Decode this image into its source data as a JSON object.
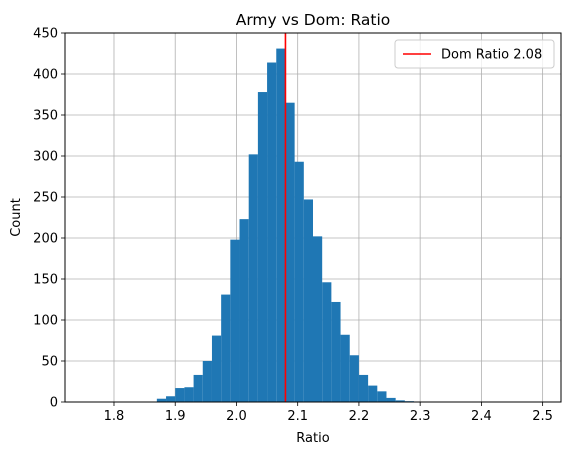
{
  "chart_data": {
    "type": "histogram",
    "title": "Army vs Dom: Ratio",
    "xlabel": "Ratio",
    "ylabel": "Count",
    "xlim": [
      1.72,
      2.53
    ],
    "ylim": [
      0,
      450
    ],
    "xticks": [
      1.8,
      1.9,
      2.0,
      2.1,
      2.2,
      2.3,
      2.4,
      2.5
    ],
    "yticks": [
      0,
      50,
      100,
      150,
      200,
      250,
      300,
      350,
      400,
      450
    ],
    "grid": true,
    "bar_color": "#1f77b4",
    "bins": [
      {
        "x0": 1.75,
        "x1": 1.765,
        "count": 0
      },
      {
        "x0": 1.765,
        "x1": 1.78,
        "count": 0
      },
      {
        "x0": 1.78,
        "x1": 1.795,
        "count": 0
      },
      {
        "x0": 1.795,
        "x1": 1.81,
        "count": 0
      },
      {
        "x0": 1.81,
        "x1": 1.825,
        "count": 0
      },
      {
        "x0": 1.825,
        "x1": 1.84,
        "count": 0
      },
      {
        "x0": 1.84,
        "x1": 1.855,
        "count": 0
      },
      {
        "x0": 1.855,
        "x1": 1.87,
        "count": 0
      },
      {
        "x0": 1.87,
        "x1": 1.885,
        "count": 4
      },
      {
        "x0": 1.885,
        "x1": 1.9,
        "count": 7
      },
      {
        "x0": 1.9,
        "x1": 1.915,
        "count": 17
      },
      {
        "x0": 1.915,
        "x1": 1.93,
        "count": 18
      },
      {
        "x0": 1.93,
        "x1": 1.945,
        "count": 33
      },
      {
        "x0": 1.945,
        "x1": 1.96,
        "count": 50
      },
      {
        "x0": 1.96,
        "x1": 1.975,
        "count": 81
      },
      {
        "x0": 1.975,
        "x1": 1.99,
        "count": 131
      },
      {
        "x0": 1.99,
        "x1": 2.005,
        "count": 198
      },
      {
        "x0": 2.005,
        "x1": 2.02,
        "count": 223
      },
      {
        "x0": 2.02,
        "x1": 2.035,
        "count": 302
      },
      {
        "x0": 2.035,
        "x1": 2.05,
        "count": 378
      },
      {
        "x0": 2.05,
        "x1": 2.065,
        "count": 414
      },
      {
        "x0": 2.065,
        "x1": 2.08,
        "count": 431
      },
      {
        "x0": 2.08,
        "x1": 2.095,
        "count": 365
      },
      {
        "x0": 2.095,
        "x1": 2.11,
        "count": 293
      },
      {
        "x0": 2.11,
        "x1": 2.125,
        "count": 247
      },
      {
        "x0": 2.125,
        "x1": 2.14,
        "count": 202
      },
      {
        "x0": 2.14,
        "x1": 2.155,
        "count": 146
      },
      {
        "x0": 2.155,
        "x1": 2.17,
        "count": 122
      },
      {
        "x0": 2.17,
        "x1": 2.185,
        "count": 82
      },
      {
        "x0": 2.185,
        "x1": 2.2,
        "count": 57
      },
      {
        "x0": 2.2,
        "x1": 2.215,
        "count": 33
      },
      {
        "x0": 2.215,
        "x1": 2.23,
        "count": 20
      },
      {
        "x0": 2.23,
        "x1": 2.245,
        "count": 13
      },
      {
        "x0": 2.245,
        "x1": 2.26,
        "count": 5
      },
      {
        "x0": 2.26,
        "x1": 2.275,
        "count": 2
      },
      {
        "x0": 2.275,
        "x1": 2.29,
        "count": 1
      }
    ],
    "reference_line": {
      "x": 2.08,
      "color": "#ff0000",
      "label": "Dom Ratio 2.08"
    },
    "legend": {
      "placement": "top-right",
      "entries": [
        "Dom Ratio 2.08"
      ]
    }
  }
}
